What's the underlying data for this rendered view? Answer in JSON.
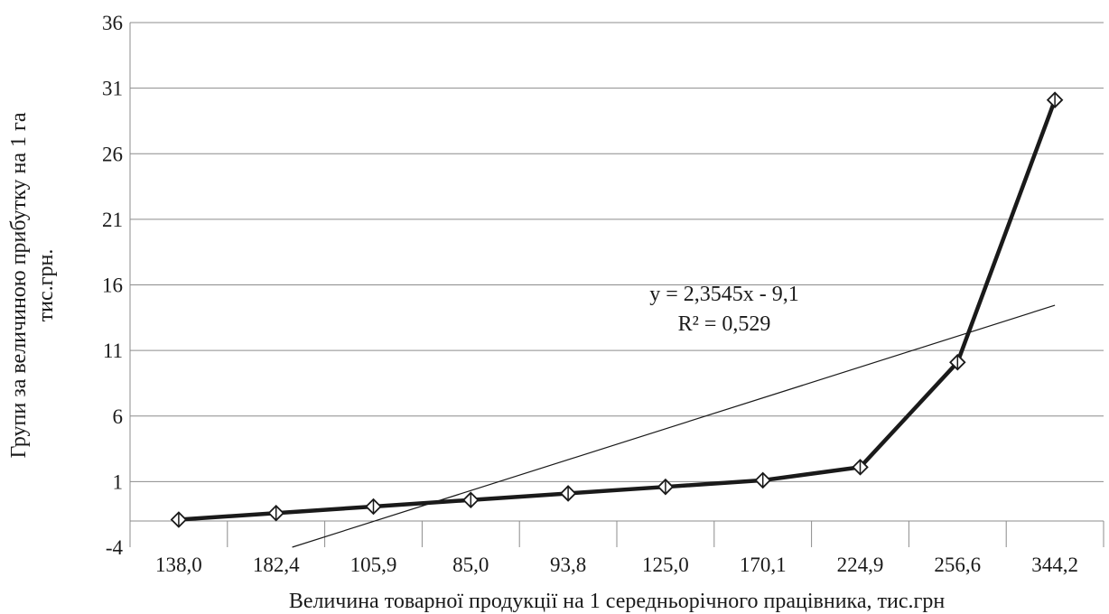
{
  "chart_data": {
    "type": "line",
    "categories": [
      "138,0",
      "182,4",
      "105,9",
      "85,0",
      "93,8",
      "125,0",
      "170,1",
      "224,9",
      "256,6",
      "344,2"
    ],
    "series": [
      {
        "values": [
          -1.9,
          -1.4,
          -0.9,
          -0.4,
          0.1,
          0.6,
          1.1,
          2.1,
          10.1,
          30.1
        ],
        "marker": "diamond",
        "color": "#1a1a1a"
      }
    ],
    "trendline": {
      "type": "linear",
      "slope": 2.3545,
      "intercept": -9.1,
      "equation": "y = 2,3545x  - 9,1",
      "r2": "R² = 0,529"
    },
    "ylim": [
      -4,
      36
    ],
    "yticks": [
      "-4",
      "1",
      "6",
      "11",
      "16",
      "21",
      "26",
      "31",
      "36"
    ],
    "ylabel_lines": [
      "Групи за величиною прибутку на 1 га",
      "тис.грн."
    ],
    "xlabel": "Величина товарної продукції на 1 середньорічного працівника, тис.грн",
    "grid": true
  }
}
